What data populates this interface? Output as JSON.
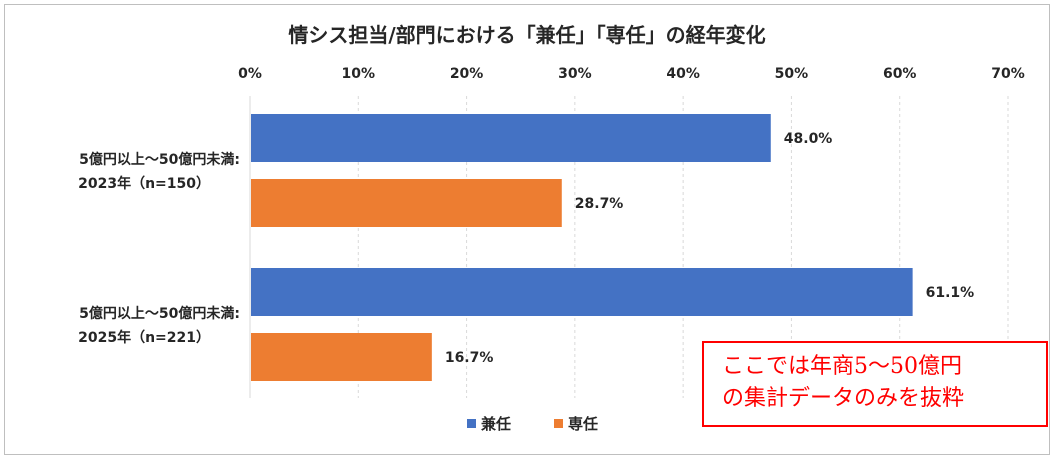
{
  "chart_data": {
    "type": "bar",
    "orientation": "horizontal",
    "title": "情シス担当/部門における「兼任」「専任」の経年変化",
    "xlim": [
      0,
      70
    ],
    "ticks": [
      "0%",
      "10%",
      "20%",
      "30%",
      "40%",
      "50%",
      "60%",
      "70%"
    ],
    "tick_values": [
      0,
      10,
      20,
      30,
      40,
      50,
      60,
      70
    ],
    "grid": true,
    "legend_position": "bottom",
    "categories": [
      {
        "line1": "5億円以上～50億円未満:",
        "line2": "2023年（n=150）"
      },
      {
        "line1": "5億円以上～50億円未満:",
        "line2": "2025年（n=221）"
      }
    ],
    "series": [
      {
        "name": "兼任",
        "color": "#4472C4",
        "values": [
          48.0,
          61.1
        ],
        "labels": [
          "48.0%",
          "61.1%"
        ]
      },
      {
        "name": "専任",
        "color": "#ED7D31",
        "values": [
          28.7,
          16.7
        ],
        "labels": [
          "28.7%",
          "16.7%"
        ]
      }
    ]
  },
  "note": {
    "line1": "ここでは年商5～50億円",
    "line2": "の集計データのみを抜粋",
    "color": "#ff0000"
  }
}
